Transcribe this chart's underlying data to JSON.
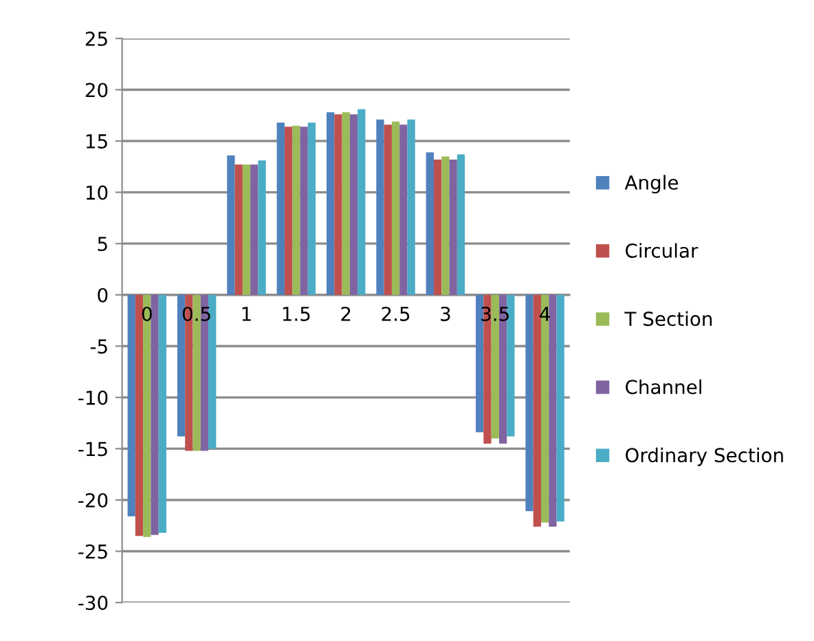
{
  "chart_data": {
    "type": "bar",
    "categories": [
      "0",
      "0.5",
      "1",
      "1.5",
      "2",
      "2.5",
      "3",
      "3.5",
      "4"
    ],
    "series": [
      {
        "name": "Angle",
        "color": "#4f81bd",
        "values": [
          -21.6,
          -13.8,
          13.6,
          16.8,
          17.8,
          17.1,
          13.9,
          -13.4,
          -21.1
        ]
      },
      {
        "name": "Circular",
        "color": "#c0504d",
        "values": [
          -23.5,
          -15.2,
          12.7,
          16.4,
          17.6,
          16.6,
          13.2,
          -14.5,
          -22.6
        ]
      },
      {
        "name": "T Section",
        "color": "#9bbb59",
        "values": [
          -23.6,
          -15.2,
          12.7,
          16.5,
          17.8,
          16.9,
          13.5,
          -14.0,
          -22.2
        ]
      },
      {
        "name": "Channel",
        "color": "#8064a2",
        "values": [
          -23.4,
          -15.2,
          12.7,
          16.4,
          17.6,
          16.6,
          13.2,
          -14.5,
          -22.6
        ]
      },
      {
        "name": "Ordinary Section",
        "color": "#4bacc6",
        "values": [
          -23.2,
          -15.0,
          13.1,
          16.8,
          18.1,
          17.1,
          13.7,
          -13.8,
          -22.1
        ]
      }
    ],
    "ylim": [
      -30,
      25
    ],
    "yticks": [
      -30,
      -25,
      -20,
      -15,
      -10,
      -5,
      0,
      5,
      10,
      15,
      20,
      25
    ],
    "grid": "y",
    "legend": "right"
  }
}
